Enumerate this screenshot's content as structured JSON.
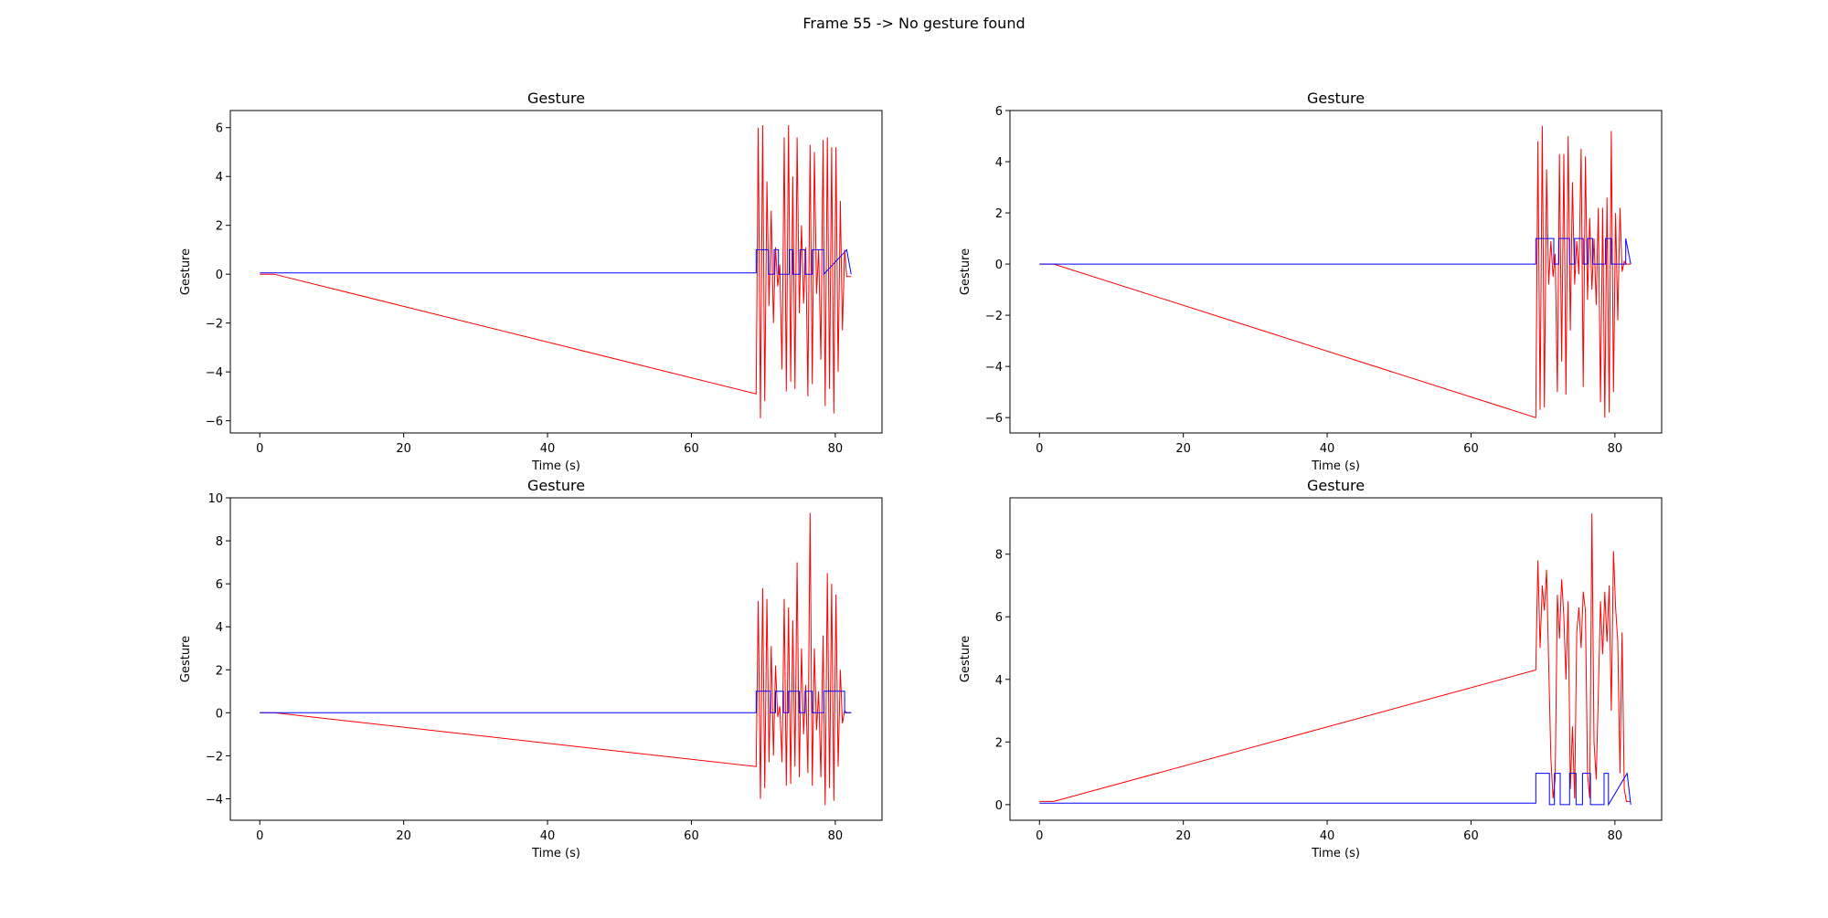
{
  "figure": {
    "suptitle": "Frame 55 -> No gesture found"
  },
  "colors": {
    "signal": "#ff0000",
    "gesture_flag": "#0000ff",
    "axes": "#000000",
    "background": "#ffffff"
  },
  "chart_data": [
    {
      "type": "line",
      "title": "Gesture",
      "xlabel": "Time (s)",
      "ylabel": "Gesture",
      "xlim": [
        -4.1,
        86.5
      ],
      "ylim": [
        -6.5,
        6.7
      ],
      "xticks": [
        0,
        20,
        40,
        60,
        80
      ],
      "yticks": [
        -6,
        -4,
        -2,
        0,
        2,
        4,
        6
      ],
      "grid": false,
      "series": [
        {
          "color": "#ff0000",
          "x": [
            0,
            2,
            69,
            69.3,
            69.6,
            69.9,
            70.2,
            70.5,
            70.8,
            71.1,
            71.4,
            71.7,
            72.0,
            72.3,
            72.6,
            72.9,
            73.2,
            73.5,
            73.8,
            74.1,
            74.4,
            74.7,
            75.0,
            75.3,
            75.6,
            75.9,
            76.2,
            76.5,
            76.8,
            77.1,
            77.4,
            77.7,
            78.0,
            78.3,
            78.6,
            78.9,
            79.2,
            79.5,
            79.8,
            80.1,
            80.4,
            80.7,
            81.0,
            81.3,
            81.6,
            81.9,
            82.2
          ],
          "y": [
            0.0,
            0.0,
            -4.9,
            6.0,
            -5.9,
            6.1,
            -5.2,
            3.8,
            -1.3,
            2.6,
            -2.0,
            1.1,
            -0.5,
            0.4,
            -3.9,
            5.6,
            -4.8,
            6.1,
            -4.4,
            4.0,
            -4.7,
            5.6,
            -1.6,
            2.0,
            -1.2,
            1.1,
            -5.0,
            5.3,
            -4.5,
            5.0,
            -0.8,
            1.0,
            -3.5,
            5.5,
            -5.4,
            5.6,
            -4.7,
            5.2,
            -5.7,
            5.2,
            -4.0,
            3.0,
            -2.3,
            1.0,
            -0.1,
            -0.1,
            -0.1
          ]
        },
        {
          "color": "#0000ff",
          "x": [
            0,
            69,
            69,
            70.7,
            70.7,
            71.5,
            71.5,
            72.1,
            72.1,
            73.6,
            73.6,
            74.1,
            74.1,
            75.1,
            75.1,
            75.8,
            75.8,
            76.8,
            76.8,
            78.4,
            78.4,
            81.6,
            81.6,
            82.2
          ],
          "y": [
            0.05,
            0.05,
            1.0,
            1.0,
            0.0,
            0.0,
            1.0,
            1.0,
            0.0,
            0.0,
            1.0,
            1.0,
            0.0,
            0.0,
            1.0,
            1.0,
            0.0,
            0.0,
            1.0,
            1.0,
            0.0,
            1.0,
            1.0,
            0.0
          ]
        }
      ]
    },
    {
      "type": "line",
      "title": "Gesture",
      "xlabel": "Time (s)",
      "ylabel": "Gesture",
      "xlim": [
        -4.1,
        86.5
      ],
      "ylim": [
        -6.6,
        6.0
      ],
      "xticks": [
        0,
        20,
        40,
        60,
        80
      ],
      "yticks": [
        -6,
        -4,
        -2,
        0,
        2,
        4,
        6
      ],
      "grid": false,
      "series": [
        {
          "color": "#ff0000",
          "x": [
            0,
            2,
            69,
            69.3,
            69.6,
            69.9,
            70.2,
            70.5,
            70.8,
            71.1,
            71.4,
            71.7,
            72.0,
            72.3,
            72.6,
            72.9,
            73.2,
            73.5,
            73.8,
            74.1,
            74.4,
            74.7,
            75.0,
            75.3,
            75.6,
            75.9,
            76.2,
            76.5,
            76.8,
            77.1,
            77.4,
            77.7,
            78.0,
            78.3,
            78.6,
            78.9,
            79.2,
            79.5,
            79.8,
            80.1,
            80.4,
            80.7,
            81.0,
            81.3,
            81.6,
            81.9,
            82.2
          ],
          "y": [
            0.0,
            0.0,
            -6.0,
            4.8,
            -5.7,
            5.4,
            -5.6,
            3.7,
            -0.8,
            0.9,
            -0.5,
            0.4,
            -5.0,
            4.3,
            -3.8,
            4.3,
            -5.1,
            5.0,
            -2.6,
            3.2,
            -0.8,
            0.9,
            -0.4,
            4.5,
            -4.8,
            4.2,
            -1.4,
            1.8,
            -1.0,
            1.0,
            -1.6,
            2.2,
            -5.4,
            2.2,
            -6.0,
            2.6,
            -5.8,
            5.2,
            -5.0,
            2.0,
            -2.2,
            2.2,
            -0.3,
            0.1,
            0.0,
            0.0,
            0.0
          ]
        },
        {
          "color": "#0000ff",
          "x": [
            0,
            69,
            69,
            71.5,
            71.5,
            72.2,
            72.2,
            73.7,
            73.7,
            74.4,
            74.4,
            75.6,
            75.6,
            76.2,
            76.2,
            76.9,
            76.9,
            78.7,
            78.7,
            79.5,
            79.5,
            81.5,
            81.5,
            82.2
          ],
          "y": [
            0.0,
            0.0,
            1.0,
            1.0,
            0.0,
            0.0,
            1.0,
            1.0,
            0.0,
            0.0,
            1.0,
            1.0,
            0.0,
            0.0,
            1.0,
            1.0,
            0.0,
            0.0,
            1.0,
            1.0,
            0.0,
            0.0,
            1.0,
            0.0
          ]
        }
      ]
    },
    {
      "type": "line",
      "title": "Gesture",
      "xlabel": "Time (s)",
      "ylabel": "Gesture",
      "xlim": [
        -4.1,
        86.5
      ],
      "ylim": [
        -5.0,
        10.0
      ],
      "xticks": [
        0,
        20,
        40,
        60,
        80
      ],
      "yticks": [
        -4,
        -2,
        0,
        2,
        4,
        6,
        8,
        10
      ],
      "grid": false,
      "series": [
        {
          "color": "#ff0000",
          "x": [
            0,
            2,
            69,
            69.3,
            69.6,
            69.9,
            70.2,
            70.5,
            70.8,
            71.1,
            71.4,
            71.7,
            72.0,
            72.3,
            72.6,
            72.9,
            73.2,
            73.5,
            73.8,
            74.1,
            74.4,
            74.7,
            75.0,
            75.3,
            75.6,
            75.9,
            76.2,
            76.5,
            76.8,
            77.1,
            77.4,
            77.7,
            78.0,
            78.3,
            78.6,
            78.9,
            79.2,
            79.5,
            79.8,
            80.1,
            80.4,
            80.7,
            81.0,
            81.3,
            81.6,
            81.9,
            82.2
          ],
          "y": [
            0.0,
            0.0,
            -2.5,
            5.2,
            -4.0,
            5.8,
            -3.5,
            5.3,
            -2.3,
            3.1,
            -2.0,
            2.2,
            -0.2,
            0.3,
            -2.3,
            5.3,
            -3.4,
            4.9,
            -3.3,
            4.3,
            -2.5,
            7.0,
            -3.0,
            3.0,
            -1.0,
            1.3,
            -2.8,
            9.3,
            -3.4,
            3.0,
            -0.8,
            1.0,
            -3.0,
            3.6,
            -4.3,
            6.5,
            -3.5,
            6.0,
            -4.1,
            5.5,
            -2.5,
            2.0,
            -0.5,
            0.1,
            0.0,
            0.0,
            0.0
          ]
        },
        {
          "color": "#0000ff",
          "x": [
            0,
            69,
            69,
            71.0,
            71.0,
            71.7,
            71.7,
            72.8,
            72.8,
            73.5,
            73.5,
            75.0,
            75.0,
            75.8,
            75.8,
            76.8,
            76.8,
            78.4,
            78.4,
            81.3,
            81.3,
            82.2
          ],
          "y": [
            0.0,
            0.0,
            1.0,
            1.0,
            0.0,
            0.0,
            1.0,
            1.0,
            0.0,
            0.0,
            1.0,
            1.0,
            0.0,
            0.0,
            1.0,
            1.0,
            0.0,
            0.0,
            1.0,
            1.0,
            0.0,
            0.0
          ]
        }
      ]
    },
    {
      "type": "line",
      "title": "Gesture",
      "xlabel": "Time (s)",
      "ylabel": "Gesture",
      "xlim": [
        -4.1,
        86.5
      ],
      "ylim": [
        -0.5,
        9.8
      ],
      "xticks": [
        0,
        20,
        40,
        60,
        80
      ],
      "yticks": [
        0,
        2,
        4,
        6,
        8
      ],
      "grid": false,
      "series": [
        {
          "color": "#ff0000",
          "x": [
            0,
            2,
            69,
            69.3,
            69.6,
            69.9,
            70.2,
            70.5,
            70.8,
            71.1,
            71.4,
            71.7,
            72.0,
            72.3,
            72.6,
            72.9,
            73.2,
            73.5,
            73.8,
            74.1,
            74.4,
            74.7,
            75.0,
            75.3,
            75.6,
            75.9,
            76.2,
            76.5,
            76.8,
            77.1,
            77.4,
            77.7,
            78.0,
            78.3,
            78.6,
            78.9,
            79.2,
            79.5,
            79.8,
            80.1,
            80.4,
            80.7,
            81.0,
            81.3,
            81.6,
            81.9,
            82.2
          ],
          "y": [
            0.1,
            0.1,
            4.3,
            7.8,
            5.0,
            7.0,
            6.2,
            7.5,
            4.5,
            1.5,
            0.2,
            0.8,
            6.7,
            5.3,
            7.2,
            6.0,
            4.0,
            6.5,
            0.5,
            2.5,
            0.2,
            5.5,
            6.3,
            5.0,
            6.8,
            6.2,
            1.0,
            0.2,
            9.3,
            2.0,
            0.8,
            3.5,
            6.5,
            4.8,
            6.8,
            5.2,
            7.0,
            3.0,
            8.1,
            6.3,
            5.2,
            1.0,
            5.5,
            0.5,
            0.1,
            0.1,
            0.1
          ]
        },
        {
          "color": "#0000ff",
          "x": [
            0,
            69,
            69,
            70.9,
            70.9,
            71.6,
            71.6,
            72.4,
            72.4,
            73.7,
            73.7,
            74.6,
            74.6,
            75.5,
            75.5,
            76.6,
            76.6,
            78.5,
            78.5,
            79.1,
            79.1,
            81.7,
            81.7,
            82.2
          ],
          "y": [
            0.05,
            0.05,
            1.0,
            1.0,
            0.0,
            0.0,
            1.0,
            1.0,
            0.0,
            0.0,
            1.0,
            1.0,
            0.0,
            0.0,
            1.0,
            1.0,
            0.0,
            0.0,
            1.0,
            1.0,
            0.0,
            1.0,
            1.0,
            0.0
          ]
        }
      ]
    }
  ]
}
